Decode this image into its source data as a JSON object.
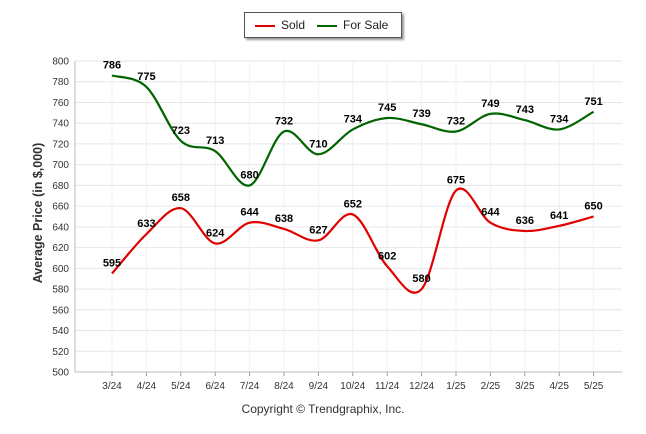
{
  "chart_data": {
    "type": "line",
    "categories": [
      "3/24",
      "4/24",
      "5/24",
      "6/24",
      "7/24",
      "8/24",
      "9/24",
      "10/24",
      "11/24",
      "12/24",
      "1/25",
      "2/25",
      "3/25",
      "4/25",
      "5/25"
    ],
    "series": [
      {
        "name": "Sold",
        "color": "#e00000",
        "values": [
          595,
          633,
          658,
          624,
          644,
          638,
          627,
          652,
          602,
          580,
          675,
          644,
          636,
          641,
          650
        ]
      },
      {
        "name": "For Sale",
        "color": "#006400",
        "values": [
          786,
          775,
          723,
          713,
          680,
          732,
          710,
          734,
          745,
          739,
          732,
          749,
          743,
          734,
          751
        ]
      }
    ],
    "ylabel": "Average Price (in $,000)",
    "ylim": [
      500,
      800
    ],
    "yticks": [
      500,
      520,
      540,
      560,
      580,
      600,
      620,
      640,
      660,
      680,
      700,
      720,
      740,
      760,
      780,
      800
    ],
    "grid": true,
    "legend": "top-center"
  },
  "footer": {
    "copyright": "Copyright © Trendgraphix, Inc."
  }
}
